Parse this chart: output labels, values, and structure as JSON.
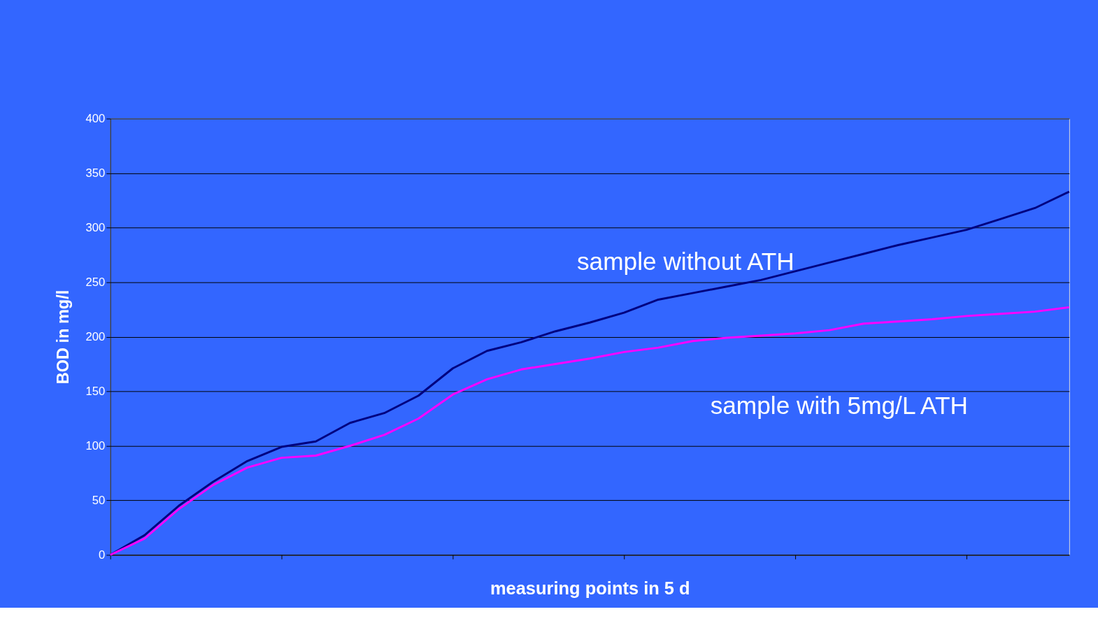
{
  "chart_data": {
    "type": "line",
    "xlabel": "measuring points in 5 d",
    "ylabel": "BOD in mg/l",
    "categories": [
      null,
      null,
      null,
      null,
      null,
      null,
      null,
      null,
      null,
      null,
      null,
      null,
      null,
      null,
      null,
      null,
      null,
      null,
      null,
      null,
      null,
      null,
      null,
      null,
      null,
      null,
      null,
      null,
      null
    ],
    "series": [
      {
        "name": "sample without ATH",
        "color": "#000080",
        "values": [
          0,
          18,
          45,
          67,
          86,
          99,
          104,
          121,
          130,
          146,
          171,
          187,
          195,
          205,
          213,
          222,
          234,
          240,
          246,
          252,
          260,
          268,
          276,
          284,
          291,
          298,
          308,
          318,
          333
        ]
      },
      {
        "name": "sample with 5mg/L ATH",
        "color": "#ff00ff",
        "values": [
          0,
          15,
          42,
          64,
          80,
          89,
          91,
          100,
          110,
          125,
          147,
          161,
          170,
          175,
          180,
          186,
          190,
          196,
          199,
          201,
          203,
          206,
          212,
          214,
          216,
          219,
          221,
          223,
          227
        ]
      }
    ],
    "ylim": [
      0,
      400
    ],
    "yticks": [
      0,
      50,
      100,
      150,
      200,
      250,
      300,
      350,
      400
    ],
    "grid": "y",
    "legend": false
  }
}
